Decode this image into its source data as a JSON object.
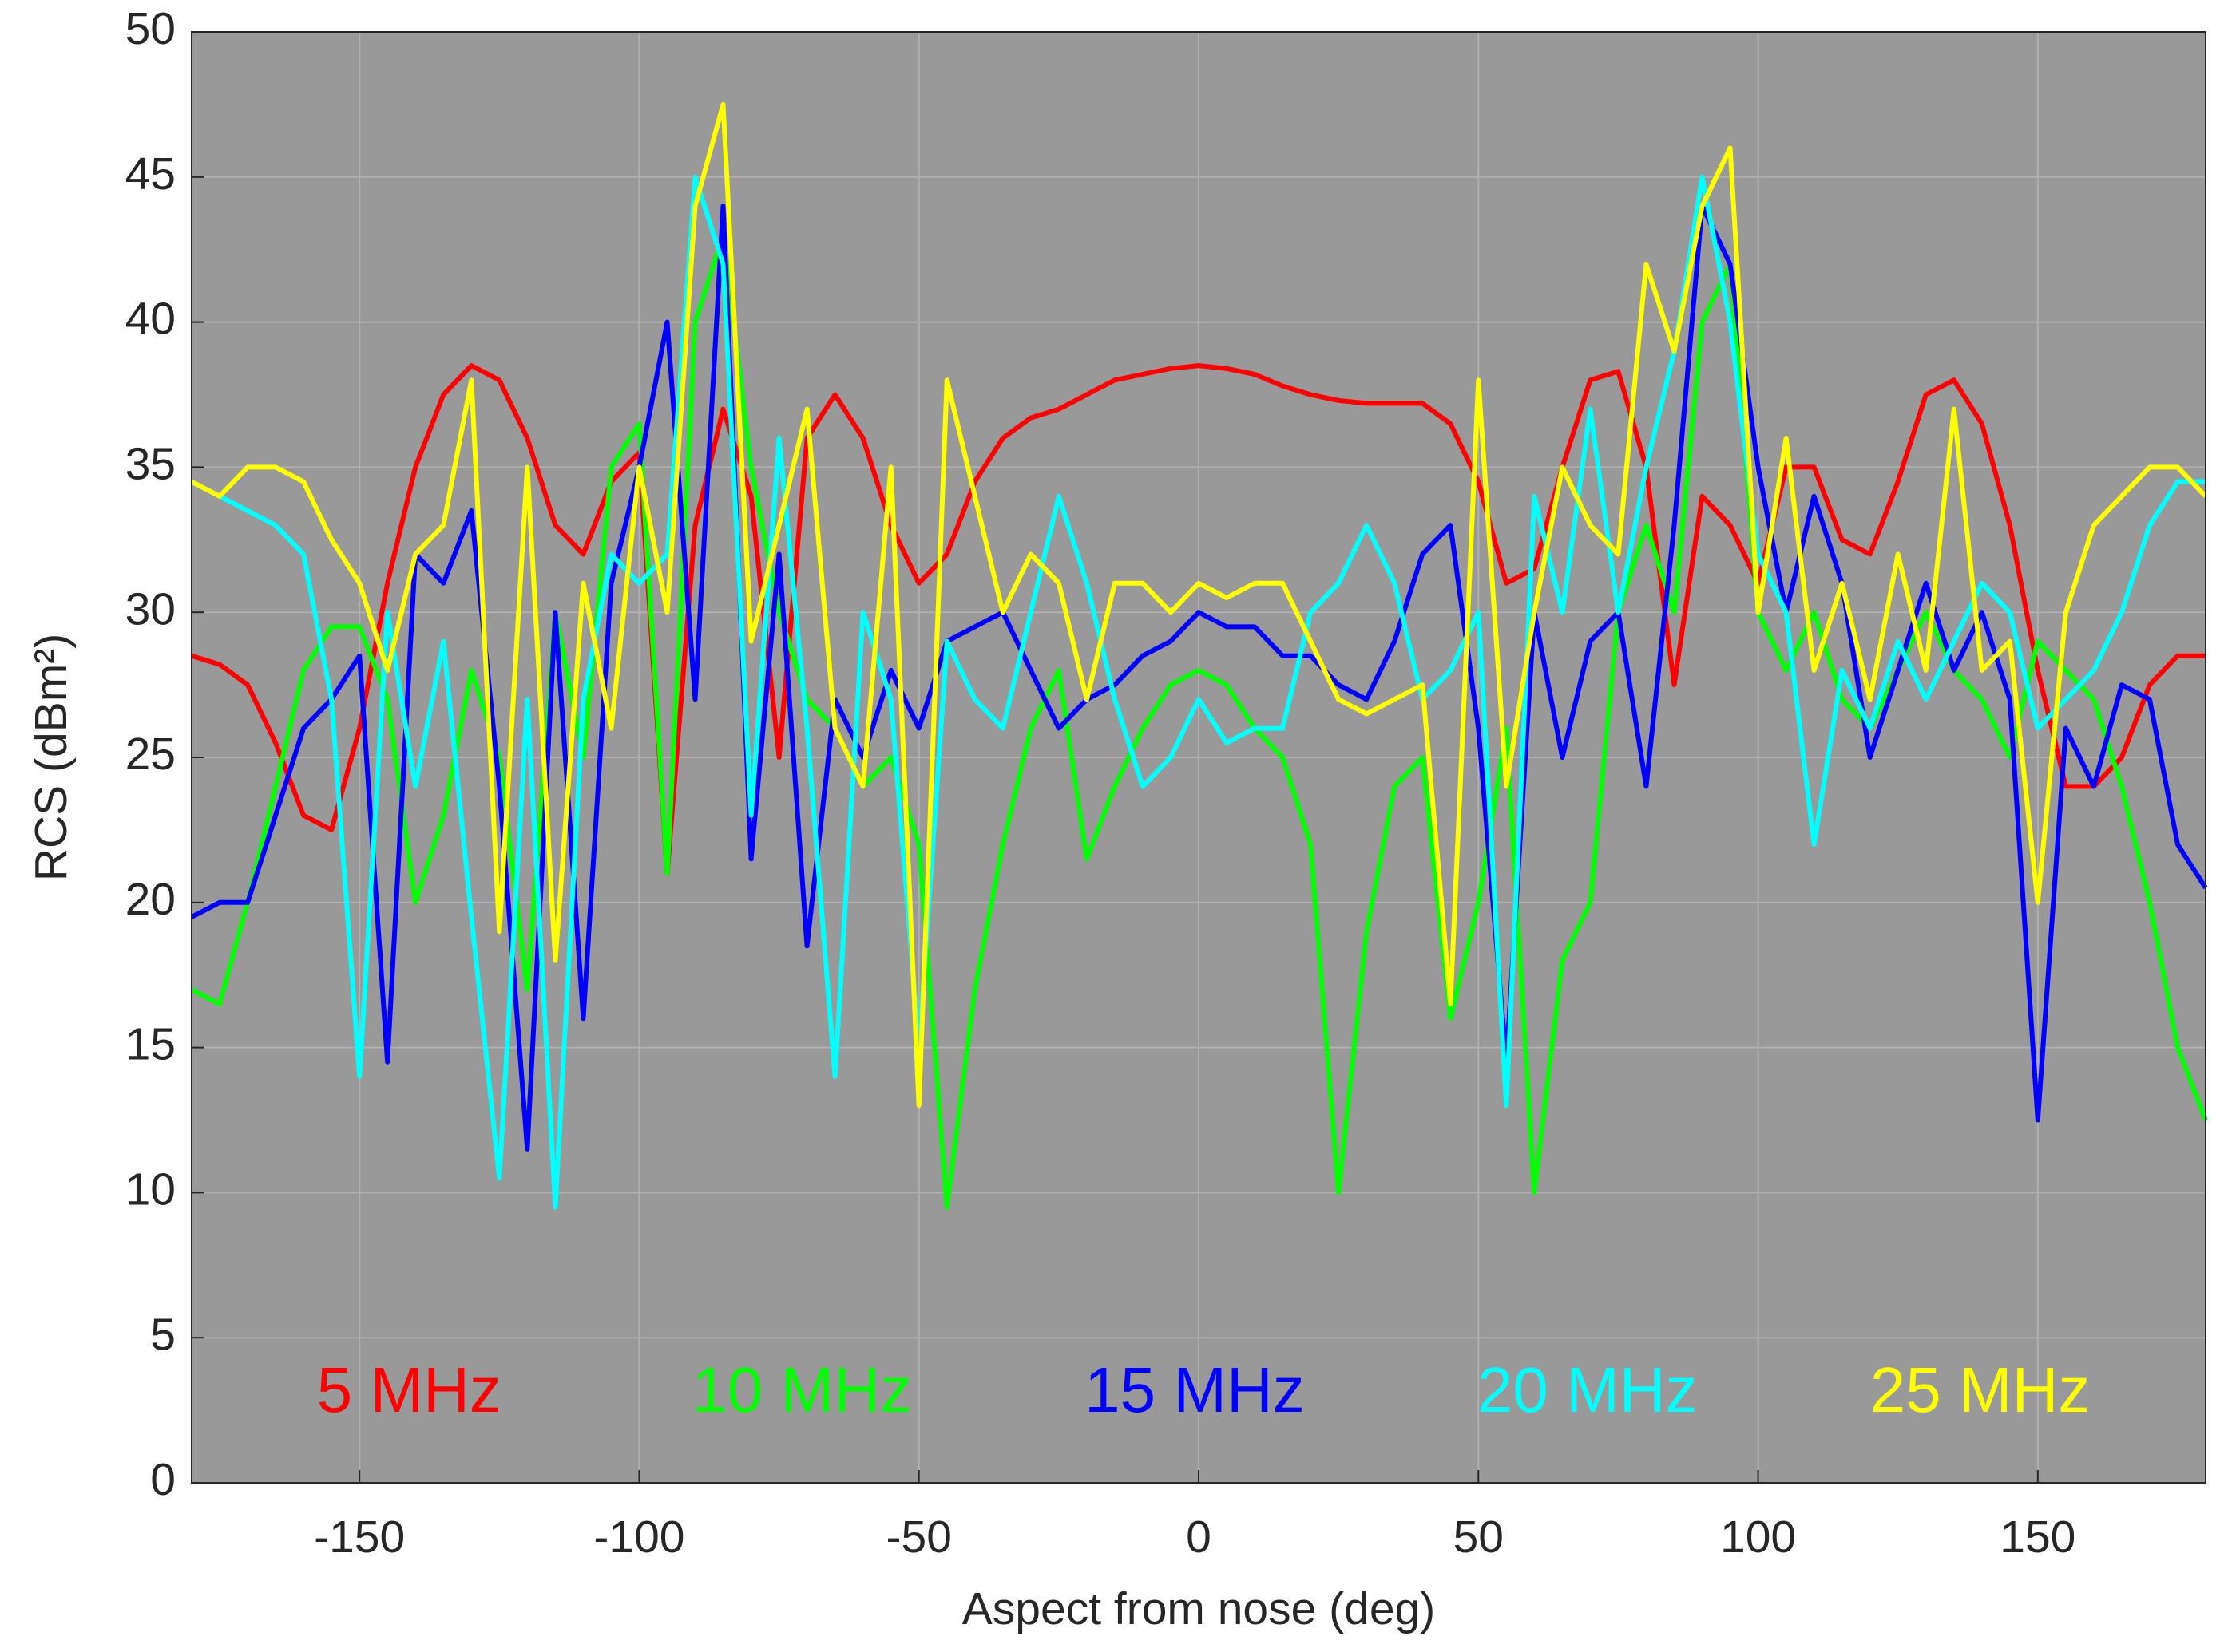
{
  "chart_data": {
    "type": "line",
    "x_label": "Aspect from nose (deg)",
    "y_label": "RCS (dBm²)",
    "xlim": [
      -180,
      180
    ],
    "xticks": [
      -150,
      -100,
      -50,
      0,
      50,
      100,
      150
    ],
    "ylim": [
      0,
      50
    ],
    "yticks": [
      0,
      5,
      10,
      15,
      20,
      25,
      30,
      35,
      40,
      45,
      50
    ],
    "grid": true,
    "legend": "bottom",
    "x": [
      -180,
      -175,
      -170,
      -165,
      -160,
      -155,
      -150,
      -145,
      -140,
      -135,
      -130,
      -125,
      -120,
      -115,
      -110,
      -105,
      -100,
      -95,
      -90,
      -85,
      -80,
      -75,
      -70,
      -65,
      -60,
      -55,
      -50,
      -45,
      -40,
      -35,
      -30,
      -25,
      -20,
      -15,
      -10,
      -5,
      0,
      5,
      10,
      15,
      20,
      25,
      30,
      35,
      40,
      45,
      50,
      55,
      60,
      65,
      70,
      75,
      80,
      85,
      90,
      95,
      100,
      105,
      110,
      115,
      120,
      125,
      130,
      135,
      140,
      145,
      150,
      155,
      160,
      165,
      170,
      175,
      180
    ],
    "series": [
      {
        "name": "5 MHz",
        "color": "#ff0000",
        "values": [
          28.5,
          28.2,
          27.5,
          25.5,
          23,
          22.5,
          26,
          31,
          35,
          37.5,
          38.5,
          38,
          36,
          33,
          32,
          34.5,
          35.5,
          21,
          33,
          37,
          34,
          25,
          36,
          37.5,
          36,
          33,
          31,
          32,
          34.5,
          36,
          36.7,
          37,
          37.5,
          38,
          38.2,
          38.4,
          38.5,
          38.4,
          38.2,
          37.8,
          37.5,
          37.3,
          37.2,
          37.2,
          37.2,
          36.5,
          34.5,
          31,
          31.5,
          35,
          38,
          38.3,
          35,
          27.5,
          34,
          33,
          31,
          35,
          35,
          32.5,
          32,
          34.5,
          37.5,
          38,
          36.5,
          33,
          28,
          24,
          24,
          25,
          27.5,
          28.5,
          28.5
        ]
      },
      {
        "name": "10 MHz",
        "color": "#00ff00",
        "values": [
          17,
          16.5,
          20,
          24,
          28,
          29.5,
          29.5,
          27,
          20,
          23,
          28,
          25,
          17,
          30,
          25,
          35,
          36.5,
          21,
          40,
          43,
          35,
          30,
          27,
          26,
          24,
          25,
          22,
          9.5,
          17,
          22,
          26,
          28,
          21.5,
          24,
          26,
          27.5,
          28,
          27.5,
          26,
          25,
          22,
          10,
          19,
          24,
          25,
          16,
          20,
          26,
          10,
          18,
          20,
          30,
          33,
          30,
          40,
          42,
          30,
          28,
          30,
          27,
          26,
          28,
          30,
          28,
          27,
          25,
          29,
          28,
          27,
          24,
          20,
          15,
          12.5
        ]
      },
      {
        "name": "15 MHz",
        "color": "#0000ff",
        "values": [
          19.5,
          20,
          20,
          23,
          26,
          27,
          28.5,
          14.5,
          32,
          31,
          33.5,
          24,
          11.5,
          30,
          16,
          31,
          35,
          40,
          27,
          44,
          21.5,
          32,
          18.5,
          27,
          25,
          28,
          26,
          29,
          29.5,
          30,
          28,
          26,
          27,
          27.5,
          28.5,
          29,
          30,
          29.5,
          29.5,
          28.5,
          28.5,
          27.5,
          27,
          29,
          32,
          33,
          26,
          14.5,
          30,
          25,
          29,
          30,
          24,
          33,
          44,
          42,
          35,
          30,
          34,
          31,
          25,
          28,
          31,
          28,
          30,
          27,
          12.5,
          26,
          24,
          27.5,
          27,
          22,
          20.5
        ]
      },
      {
        "name": "20 MHz",
        "color": "#00ffff",
        "values": [
          34.5,
          34,
          33.5,
          33,
          32,
          27,
          14,
          30,
          24,
          29,
          19.5,
          10.5,
          27,
          9.5,
          27,
          32,
          31,
          32,
          45,
          42,
          23,
          36,
          26,
          14,
          30,
          27,
          15,
          29,
          27,
          26,
          30,
          34,
          31,
          27,
          24,
          25,
          27,
          25.5,
          26,
          26,
          30,
          31,
          33,
          31,
          27,
          28,
          30,
          13,
          34,
          30,
          37,
          30,
          35,
          39,
          45,
          40,
          32,
          30,
          22,
          28,
          26,
          29,
          27,
          29,
          31,
          30,
          26,
          27,
          28,
          30,
          33,
          34.5,
          34.5
        ]
      },
      {
        "name": "25 MHz",
        "color": "#ffff00",
        "values": [
          34.5,
          34,
          35,
          35,
          34.5,
          32.5,
          31,
          28,
          32,
          33,
          38,
          19,
          35,
          18,
          31,
          26,
          35,
          30,
          44,
          47.5,
          29,
          33,
          37,
          26,
          24,
          35,
          13,
          38,
          34,
          30,
          32,
          31,
          27,
          31,
          31,
          30,
          31,
          30.5,
          31,
          31,
          29,
          27,
          26.5,
          27,
          27.5,
          16.5,
          38,
          24,
          30,
          35,
          33,
          32,
          42,
          39,
          44,
          46,
          30,
          36,
          28,
          31,
          27,
          32,
          28,
          37,
          28,
          29,
          20,
          30,
          33,
          34,
          35,
          35,
          34
        ]
      }
    ]
  }
}
